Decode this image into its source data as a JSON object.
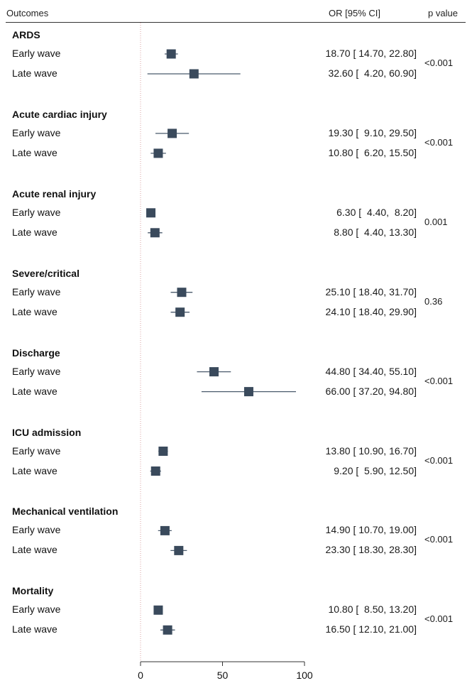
{
  "header": {
    "outcomes": "Outcomes",
    "or_ci": "OR [95% CI]",
    "p_value": "p value"
  },
  "chart_data": {
    "type": "forest",
    "xlim": [
      0,
      100
    ],
    "x_ticks": [
      0,
      50,
      100
    ],
    "reference_line": 0,
    "groups": [
      {
        "name": "ARDS",
        "p_value": "<0.001",
        "rows": [
          {
            "label": "Early wave",
            "or": 18.7,
            "lo": 14.7,
            "hi": 22.8,
            "text": "18.70 [ 14.70, 22.80]"
          },
          {
            "label": "Late wave",
            "or": 32.6,
            "lo": 4.2,
            "hi": 60.9,
            "text": "32.60 [  4.20, 60.90]"
          }
        ]
      },
      {
        "name": "Acute cardiac injury",
        "p_value": "<0.001",
        "rows": [
          {
            "label": "Early wave",
            "or": 19.3,
            "lo": 9.1,
            "hi": 29.5,
            "text": "19.30 [  9.10, 29.50]"
          },
          {
            "label": "Late wave",
            "or": 10.8,
            "lo": 6.2,
            "hi": 15.5,
            "text": "10.80 [  6.20, 15.50]"
          }
        ]
      },
      {
        "name": "Acute renal injury",
        "p_value": "0.001",
        "rows": [
          {
            "label": "Early wave",
            "or": 6.3,
            "lo": 4.4,
            "hi": 8.2,
            "text": "6.30 [  4.40,  8.20]"
          },
          {
            "label": "Late wave",
            "or": 8.8,
            "lo": 4.4,
            "hi": 13.3,
            "text": "8.80 [  4.40, 13.30]"
          }
        ]
      },
      {
        "name": "Severe/critical",
        "p_value": "0.36",
        "rows": [
          {
            "label": "Early wave",
            "or": 25.1,
            "lo": 18.4,
            "hi": 31.7,
            "text": "25.10 [ 18.40, 31.70]"
          },
          {
            "label": "Late wave",
            "or": 24.1,
            "lo": 18.4,
            "hi": 29.9,
            "text": "24.10 [ 18.40, 29.90]"
          }
        ]
      },
      {
        "name": "Discharge",
        "p_value": "<0.001",
        "rows": [
          {
            "label": "Early wave",
            "or": 44.8,
            "lo": 34.4,
            "hi": 55.1,
            "text": "44.80 [ 34.40, 55.10]"
          },
          {
            "label": "Late wave",
            "or": 66.0,
            "lo": 37.2,
            "hi": 94.8,
            "text": "66.00 [ 37.20, 94.80]"
          }
        ]
      },
      {
        "name": "ICU admission",
        "p_value": "<0.001",
        "rows": [
          {
            "label": "Early wave",
            "or": 13.8,
            "lo": 10.9,
            "hi": 16.7,
            "text": "13.80 [ 10.90, 16.70]"
          },
          {
            "label": "Late wave",
            "or": 9.2,
            "lo": 5.9,
            "hi": 12.5,
            "text": "9.20 [  5.90, 12.50]"
          }
        ]
      },
      {
        "name": "Mechanical ventilation",
        "p_value": "<0.001",
        "rows": [
          {
            "label": "Early wave",
            "or": 14.9,
            "lo": 10.7,
            "hi": 19.0,
            "text": "14.90 [ 10.70, 19.00]"
          },
          {
            "label": "Late wave",
            "or": 23.3,
            "lo": 18.3,
            "hi": 28.3,
            "text": "23.30 [ 18.30, 28.30]"
          }
        ]
      },
      {
        "name": "Mortality",
        "p_value": "<0.001",
        "rows": [
          {
            "label": "Early wave",
            "or": 10.8,
            "lo": 8.5,
            "hi": 13.2,
            "text": "10.80 [  8.50, 13.20]"
          },
          {
            "label": "Late wave",
            "or": 16.5,
            "lo": 12.1,
            "hi": 21.0,
            "text": "16.50 [ 12.10, 21.00]"
          }
        ]
      }
    ],
    "colors": {
      "marker": "#3a4a5c",
      "ci_line": "#4a5a6c",
      "reference": "#d9a0a0",
      "axis": "#333333"
    }
  }
}
